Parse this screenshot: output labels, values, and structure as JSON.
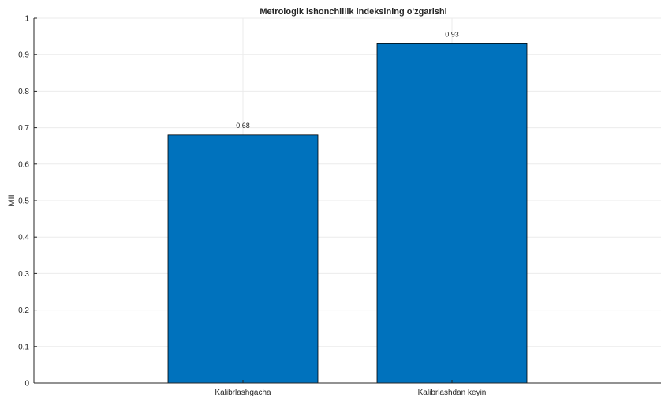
{
  "chart_data": {
    "type": "bar",
    "title": "Metrologik ishonchlilik indeksining o'zgarishi",
    "xlabel": "",
    "ylabel": "MII",
    "categories": [
      "Kalibrlashgacha",
      "Kalibrlashdan keyin"
    ],
    "values": [
      0.68,
      0.93
    ],
    "data_labels": [
      "0.68",
      "0.93"
    ],
    "ylim": [
      0,
      1
    ],
    "yticks": [
      0,
      0.1,
      0.2,
      0.3,
      0.4,
      0.5,
      0.6,
      0.7,
      0.8,
      0.9,
      1
    ],
    "ytick_labels": [
      "0",
      "0.1",
      "0.2",
      "0.3",
      "0.4",
      "0.5",
      "0.6",
      "0.7",
      "0.8",
      "0.9",
      "1"
    ],
    "grid": true,
    "bar_color": "#0072BD",
    "edge_color": "#000000"
  }
}
